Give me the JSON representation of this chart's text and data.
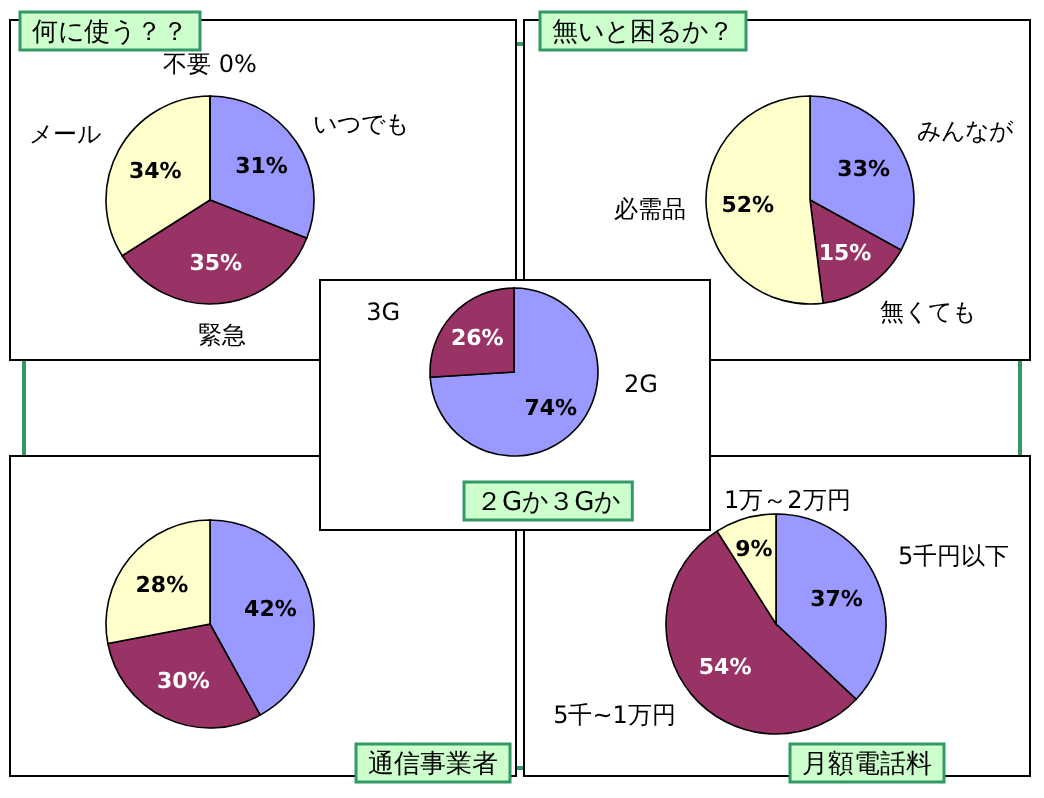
{
  "chart_data": [
    {
      "type": "pie",
      "title": "何に使う？？",
      "categories": [
        "いつでも",
        "緊急",
        "メール",
        "不要 0%"
      ],
      "values": [
        31,
        35,
        34,
        0
      ],
      "value_labels": [
        "31%",
        "35%",
        "34%",
        null
      ],
      "colors": [
        "#9999ff",
        "#993366",
        "#ffffcc",
        "#ffffff"
      ]
    },
    {
      "type": "pie",
      "title": "無いと困るか？",
      "categories": [
        "みんなが",
        "無くても",
        "必需品"
      ],
      "values": [
        33,
        15,
        52
      ],
      "value_labels": [
        "33%",
        "15%",
        "52%"
      ],
      "colors": [
        "#9999ff",
        "#993366",
        "#ffffcc"
      ]
    },
    {
      "type": "pie",
      "title": "２Gか３Gか",
      "categories": [
        "2G",
        "3G"
      ],
      "values": [
        74,
        26
      ],
      "value_labels": [
        "74%",
        "26%"
      ],
      "colors": [
        "#9999ff",
        "#993366"
      ]
    },
    {
      "type": "pie",
      "title": "通信事業者",
      "categories": [
        null,
        null,
        null
      ],
      "values": [
        42,
        30,
        28
      ],
      "value_labels": [
        "42%",
        "30%",
        "28%"
      ],
      "colors": [
        "#9999ff",
        "#993366",
        "#ffffcc"
      ]
    },
    {
      "type": "pie",
      "title": "月額電話料",
      "categories": [
        "5千円以下",
        "5千~1万円",
        "1万～2万円"
      ],
      "values": [
        37,
        54,
        9
      ],
      "value_labels": [
        "37%",
        "54%",
        "9%"
      ],
      "colors": [
        "#9999ff",
        "#993366",
        "#ffffcc"
      ]
    }
  ]
}
